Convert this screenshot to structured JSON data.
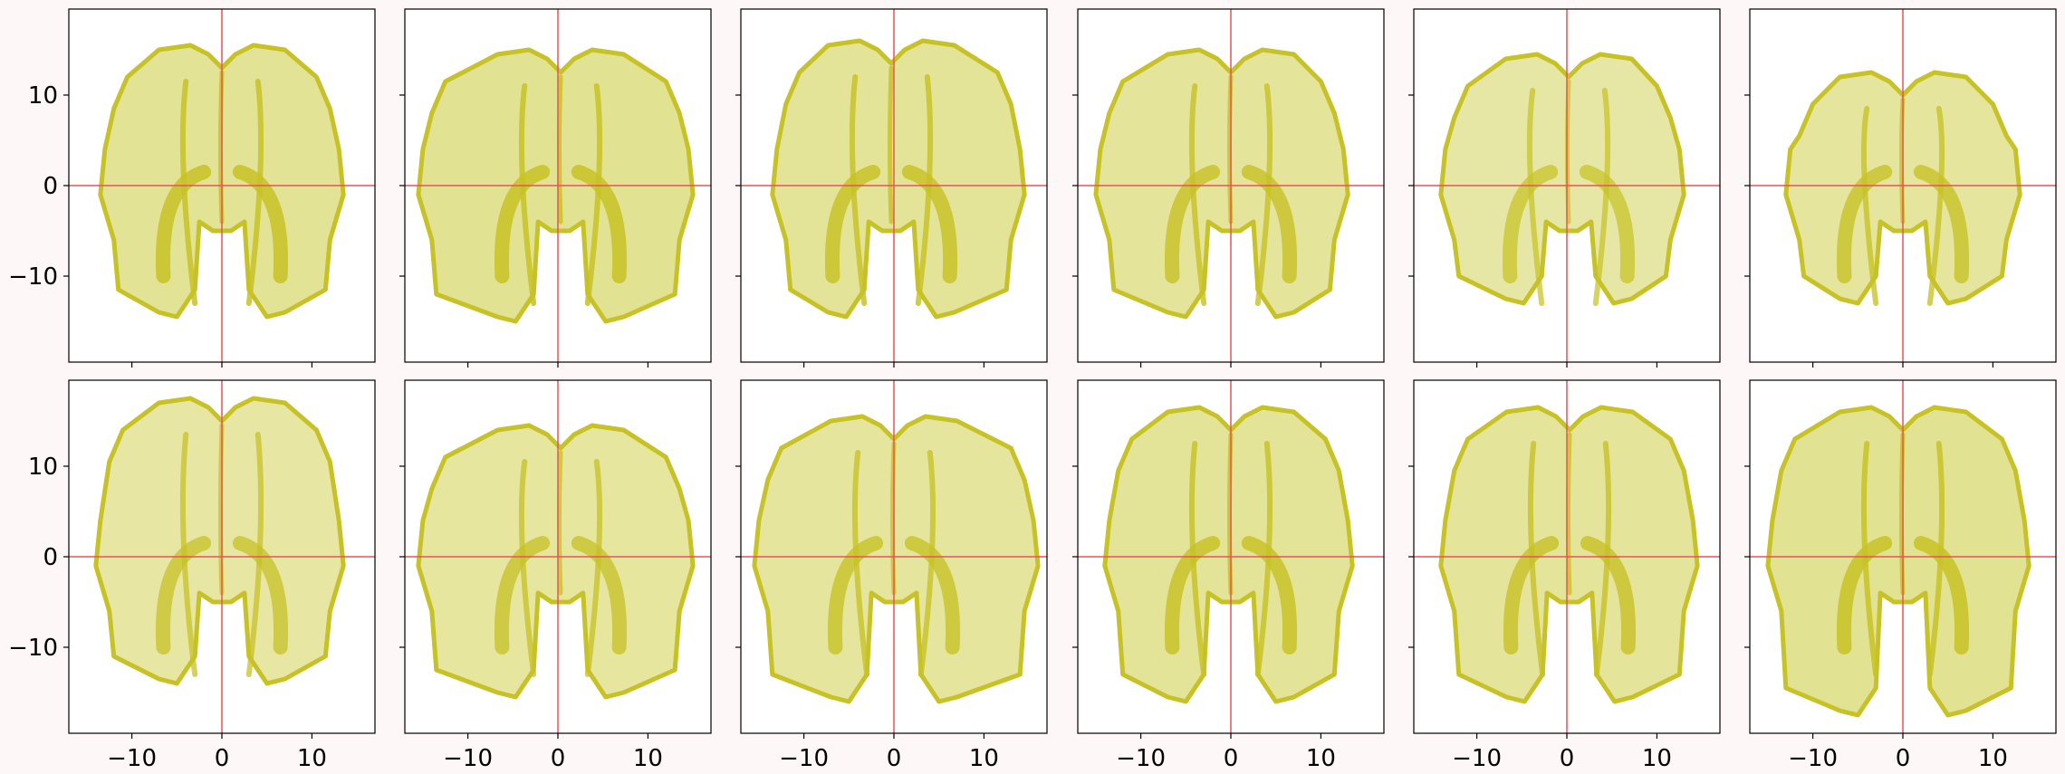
{
  "figure": {
    "background": "#fdf8f7",
    "panel_background": "#ffffff",
    "frame_color": "#000000",
    "crosshair_color": "#e8535a",
    "fill_color": "#c7c227",
    "fill_light": "#ecedb6"
  },
  "chart_data": {
    "type": "scatter",
    "description_type": "small-multiples",
    "rows": 2,
    "cols": 6,
    "sharex": true,
    "sharey": true,
    "xlim": [
      -17,
      17
    ],
    "ylim": [
      -19.5,
      19.5
    ],
    "xticks": [
      -10,
      0,
      10
    ],
    "yticks": [
      10,
      0,
      -10
    ],
    "xtick_labels": [
      "−10",
      "0",
      "10"
    ],
    "ytick_labels": [
      "10",
      "0",
      "−10"
    ],
    "crosshair": {
      "x": 0,
      "y": 0
    },
    "title": "",
    "xlabel": "",
    "ylabel": "",
    "grid": false,
    "panels": [
      {
        "row": 0,
        "col": 0,
        "ymax": 15.5,
        "ymin": -14.5,
        "xmin": -13.5,
        "xmax": 13.5,
        "lobe_shift": 0.0,
        "density": 0.75
      },
      {
        "row": 0,
        "col": 1,
        "ymax": 15.0,
        "ymin": -15.0,
        "xmin": -15.5,
        "xmax": 15.0,
        "lobe_shift": 0.3,
        "density": 0.8
      },
      {
        "row": 0,
        "col": 2,
        "ymax": 16.0,
        "ymin": -14.5,
        "xmin": -13.5,
        "xmax": 14.5,
        "lobe_shift": -0.3,
        "density": 0.7
      },
      {
        "row": 0,
        "col": 3,
        "ymax": 15.0,
        "ymin": -14.5,
        "xmin": -15.0,
        "xmax": 13.0,
        "lobe_shift": 0.0,
        "density": 0.65
      },
      {
        "row": 0,
        "col": 4,
        "ymax": 14.5,
        "ymin": -13.0,
        "xmin": -14.0,
        "xmax": 13.0,
        "lobe_shift": 0.2,
        "density": 0.45
      },
      {
        "row": 0,
        "col": 5,
        "ymax": 12.5,
        "ymin": -13.0,
        "xmin": -13.0,
        "xmax": 13.0,
        "lobe_shift": 0.0,
        "density": 0.6
      },
      {
        "row": 1,
        "col": 0,
        "ymax": 17.5,
        "ymin": -14.0,
        "xmin": -14.0,
        "xmax": 13.5,
        "lobe_shift": 0.0,
        "density": 0.5
      },
      {
        "row": 1,
        "col": 1,
        "ymax": 14.5,
        "ymin": -15.5,
        "xmin": -15.5,
        "xmax": 15.0,
        "lobe_shift": 0.3,
        "density": 0.55
      },
      {
        "row": 1,
        "col": 2,
        "ymax": 15.5,
        "ymin": -16.0,
        "xmin": -15.5,
        "xmax": 16.0,
        "lobe_shift": 0.0,
        "density": 0.6
      },
      {
        "row": 1,
        "col": 3,
        "ymax": 16.5,
        "ymin": -16.0,
        "xmin": -14.0,
        "xmax": 13.5,
        "lobe_shift": 0.0,
        "density": 0.7
      },
      {
        "row": 1,
        "col": 4,
        "ymax": 16.5,
        "ymin": -16.0,
        "xmin": -14.0,
        "xmax": 14.5,
        "lobe_shift": 0.3,
        "density": 0.65
      },
      {
        "row": 1,
        "col": 5,
        "ymax": 16.5,
        "ymin": -17.5,
        "xmin": -15.0,
        "xmax": 14.0,
        "lobe_shift": 0.0,
        "density": 0.8
      }
    ]
  }
}
